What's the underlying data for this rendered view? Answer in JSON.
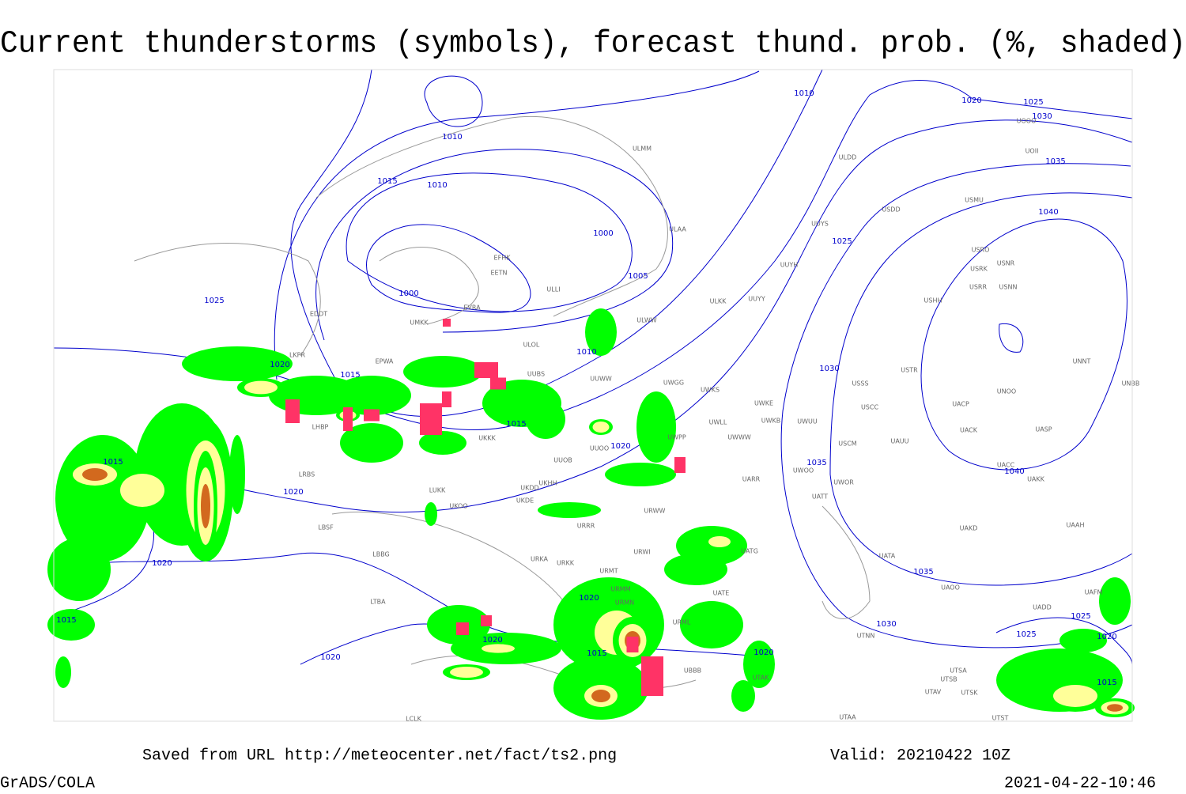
{
  "title": "Current thunderstorms (symbols), forecast thund. prob. (%, shaded)",
  "footer": {
    "saved": "Saved from URL http://meteocenter.net/fact/ts2.png",
    "valid": "Valid: 20210422 10Z",
    "software": "GrADS/COLA",
    "timestamp": "2021-04-22-10:46"
  },
  "isobar_labels": [
    1010,
    1015,
    1010,
    1000,
    1005,
    1000,
    1025,
    1010,
    1020,
    1025,
    1030,
    1035,
    1040,
    1025,
    1020,
    1015,
    1010,
    1030,
    1015,
    1015,
    1020,
    1035,
    1040,
    1020,
    1020,
    1035,
    1020,
    1015,
    1030,
    1025,
    1025,
    1020,
    1020,
    1015,
    1020,
    1020,
    1015
  ],
  "stations": [
    "ULMM",
    "ULDD",
    "ULAA",
    "EFHK",
    "EETN",
    "EVRA",
    "ULOL",
    "UMKK",
    "EPWA",
    "ULLI",
    "USDD",
    "USMU",
    "UUYS",
    "UUYH",
    "ULKK",
    "UUYY",
    "ULWW",
    "UUWW",
    "UUBS",
    "UWGG",
    "UWKS",
    "UWKE",
    "UWKB",
    "UWUU",
    "USSS",
    "USTR",
    "USHH",
    "USRR",
    "USNN",
    "USRK",
    "USNR",
    "USRO",
    "UNOO",
    "UACP",
    "UACK",
    "UASP",
    "UNNT",
    "UNBB",
    "USCC",
    "UAUU",
    "USCM",
    "UWPP",
    "UWWW",
    "UWLL",
    "UWOO",
    "UWOR",
    "UATT",
    "UACC",
    "UAKK",
    "UARR",
    "URWW",
    "UUOB",
    "UUOO",
    "UKHH",
    "UKDD",
    "UKDE",
    "UKKK",
    "LUKK",
    "UKOO",
    "LBSF",
    "LBBG",
    "URRR",
    "URWI",
    "UATG",
    "URKA",
    "URKK",
    "URMT",
    "URMM",
    "URMN",
    "URML",
    "UATE",
    "UBBB",
    "UTAK",
    "UAKD",
    "UAAH",
    "UATA",
    "UAOO",
    "UAFM",
    "UADD",
    "UTNN",
    "UTSA",
    "UTSB",
    "UTAV",
    "UTSK",
    "UTAA",
    "UTST",
    "LCLK",
    "LTBA",
    "LKPR",
    "LHBP",
    "LRBS",
    "EDDT",
    "UOOO",
    "UOII"
  ]
}
